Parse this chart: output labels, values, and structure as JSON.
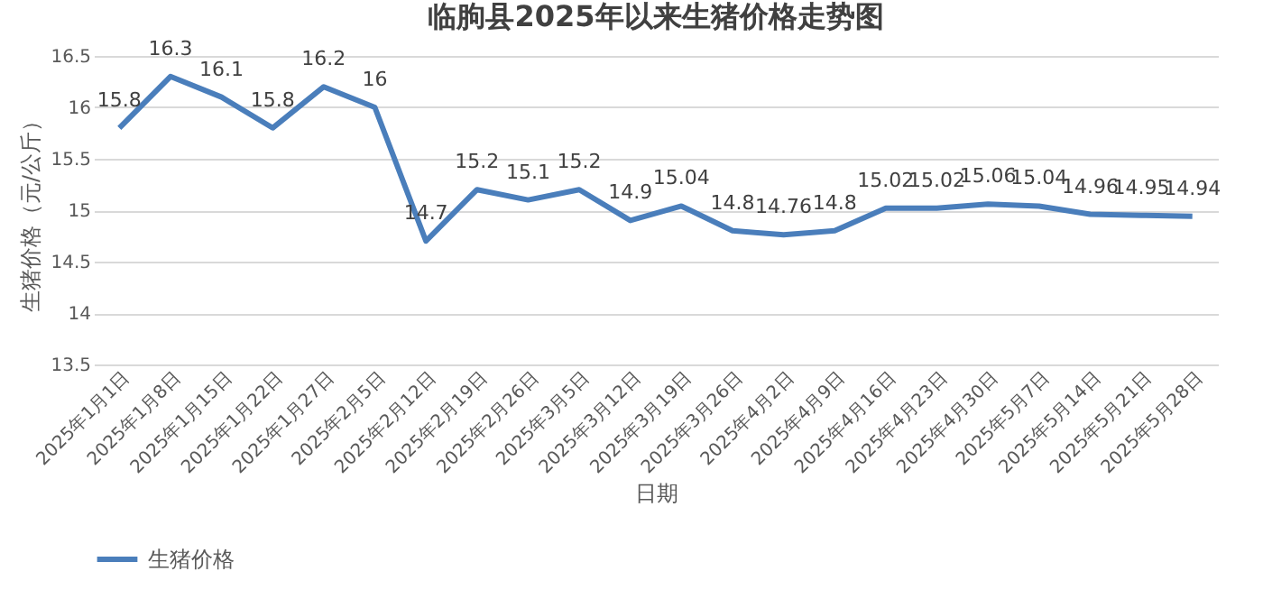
{
  "chart_data": {
    "type": "line",
    "title": "临朐县2025年以来生猪价格走势图",
    "xlabel": "日期",
    "ylabel": "生猪价格（元/公斤）",
    "categories": [
      "2025年1月1日",
      "2025年1月8日",
      "2025年1月15日",
      "2025年1月22日",
      "2025年1月27日",
      "2025年2月5日",
      "2025年2月12日",
      "2025年2月19日",
      "2025年2月26日",
      "2025年3月5日",
      "2025年3月12日",
      "2025年3月19日",
      "2025年3月26日",
      "2025年4月2日",
      "2025年4月9日",
      "2025年4月16日",
      "2025年4月23日",
      "2025年4月30日",
      "2025年5月7日",
      "2025年5月14日",
      "2025年5月21日",
      "2025年5月28日"
    ],
    "series": [
      {
        "name": "生猪价格",
        "color": "#4a7ebb",
        "values": [
          15.8,
          16.3,
          16.1,
          15.8,
          16.2,
          16,
          14.7,
          15.2,
          15.1,
          15.2,
          14.9,
          15.04,
          14.8,
          14.76,
          14.8,
          15.02,
          15.02,
          15.06,
          15.04,
          14.96,
          14.95,
          14.94
        ]
      }
    ],
    "ylim": [
      13.5,
      16.5
    ],
    "yticks": [
      13.5,
      14,
      14.5,
      15,
      15.5,
      16,
      16.5
    ],
    "grid": "y",
    "legend": "bottom",
    "data_labels": true,
    "marker": "none",
    "line_style": "solid"
  }
}
